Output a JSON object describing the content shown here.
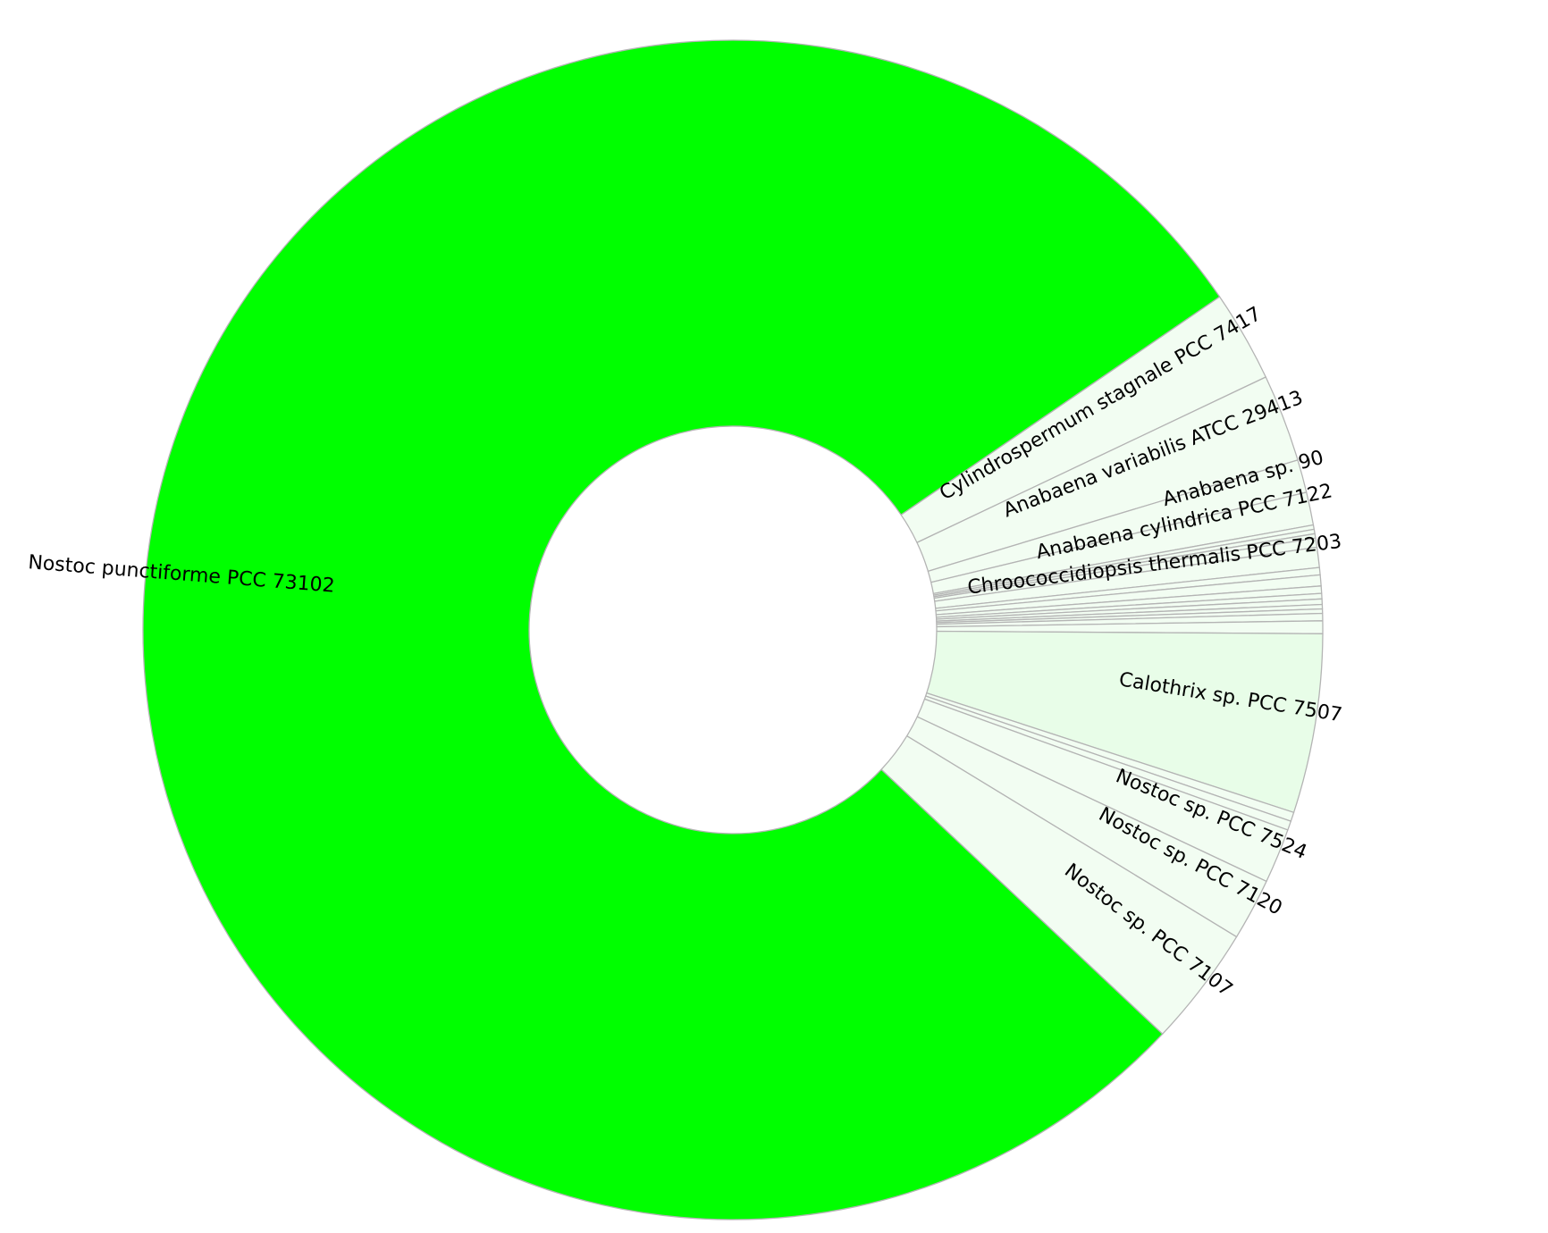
{
  "chart_data": {
    "type": "pie",
    "style": "donut",
    "start_angle_deg": 55.6,
    "direction": "clockwise",
    "legend": "none",
    "slices": [
      {
        "label": "Cylindrospermum stagnale PCC 7417",
        "value": 2.5,
        "color": "#f2fdf2"
      },
      {
        "label": "Anabaena variabilis ATCC 29413",
        "value": 2.4,
        "color": "#f2fdf2"
      },
      {
        "label": "Anabaena sp. 90",
        "value": 0.9,
        "color": "#f2fdf2"
      },
      {
        "label": "Anabaena cylindrica PCC 7122",
        "value": 0.9,
        "color": "#f2fdf2"
      },
      {
        "label": "",
        "value": 0.12,
        "color": "#f2fdf2"
      },
      {
        "label": "",
        "value": 0.12,
        "color": "#f2fdf2"
      },
      {
        "label": "",
        "value": 0.12,
        "color": "#f2fdf2"
      },
      {
        "label": "",
        "value": 0.25,
        "color": "#f2fdf2"
      },
      {
        "label": "Chroococcidiopsis thermalis PCC 7203",
        "value": 0.55,
        "color": "#f2fdf2"
      },
      {
        "label": "",
        "value": 0.2,
        "color": "#f2fdf2"
      },
      {
        "label": "",
        "value": 0.3,
        "color": "#f2fdf2"
      },
      {
        "label": "",
        "value": 0.2,
        "color": "#f2fdf2"
      },
      {
        "label": "",
        "value": 0.15,
        "color": "#f2fdf2"
      },
      {
        "label": "",
        "value": 0.15,
        "color": "#f2fdf2"
      },
      {
        "label": "",
        "value": 0.12,
        "color": "#f2fdf2"
      },
      {
        "label": "",
        "value": 0.12,
        "color": "#f2fdf2"
      },
      {
        "label": "",
        "value": 0.2,
        "color": "#f2fdf2"
      },
      {
        "label": "",
        "value": 0.35,
        "color": "#f2fdf2"
      },
      {
        "label": "Calothrix sp. PCC 7507",
        "value": 4.9,
        "color": "#e8fde8"
      },
      {
        "label": "",
        "value": 0.25,
        "color": "#f2fdf2"
      },
      {
        "label": "",
        "value": 0.25,
        "color": "#f2fdf2"
      },
      {
        "label": "Nostoc sp. PCC 7524",
        "value": 1.5,
        "color": "#f2fdf2"
      },
      {
        "label": "Nostoc sp. PCC 7120",
        "value": 1.7,
        "color": "#f2fdf2"
      },
      {
        "label": "Nostoc sp. PCC 7107",
        "value": 3.3,
        "color": "#f2fdf2"
      },
      {
        "label": "Nostoc punctiforme PCC 73102",
        "value": 78.35,
        "color": "#00ff00"
      }
    ]
  }
}
